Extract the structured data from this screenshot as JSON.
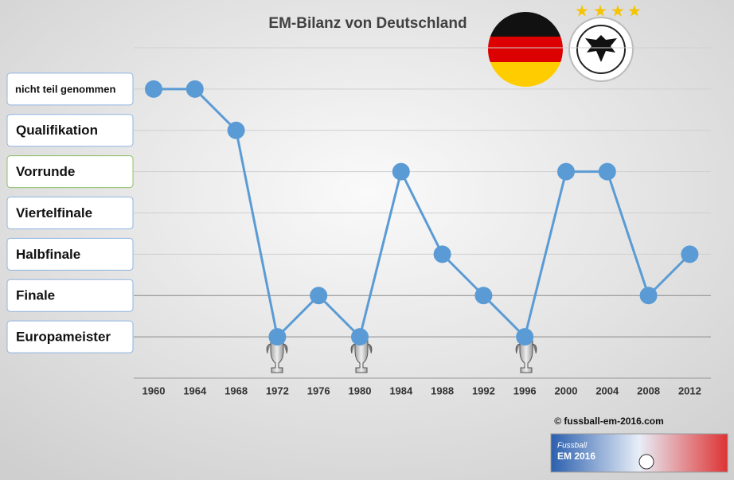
{
  "chart_data": {
    "type": "line",
    "title": "EM-Bilanz von Deutschland",
    "categories": [
      "1960",
      "1964",
      "1968",
      "1972",
      "1976",
      "1980",
      "1984",
      "1988",
      "1992",
      "1996",
      "2000",
      "2004",
      "2008",
      "2012"
    ],
    "values": [
      7,
      7,
      6,
      1,
      2,
      1,
      5,
      3,
      2,
      1,
      5,
      5,
      2,
      3
    ],
    "color": "#5b9bd5",
    "ylim": [
      0,
      8
    ],
    "yticks": [
      {
        "value": 1,
        "label": "Europameister"
      },
      {
        "value": 2,
        "label": "Finale"
      },
      {
        "value": 3,
        "label": "Halbfinale"
      },
      {
        "value": 4,
        "label": "Viertelfinale"
      },
      {
        "value": 5,
        "label": "Vorrunde"
      },
      {
        "value": 6,
        "label": "Qualifikation"
      },
      {
        "value": 7,
        "label": "nicht teil genommen"
      }
    ],
    "grid": true,
    "annotations": [
      "© fussball-em-2016.com",
      "Fussball",
      "EM 2016"
    ]
  }
}
